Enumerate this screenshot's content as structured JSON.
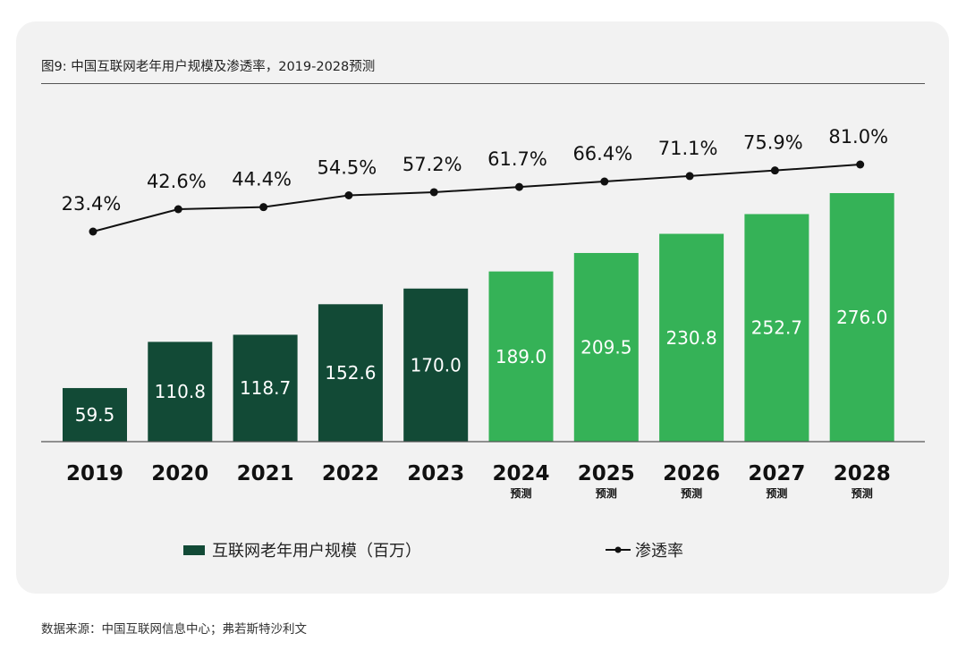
{
  "source_note": "数据来源：中国互联网信息中心；弗若斯特沙利文",
  "colors": {
    "actual_bar": "#124a36",
    "forecast_bar": "#35b257",
    "line": "#111111",
    "card_bg": "#f2f2f2"
  },
  "chart_data": {
    "type": "bar",
    "title": "图9: 中国互联网老年用户规模及渗透率，2019-2028预测",
    "categories": [
      "2019",
      "2020",
      "2021",
      "2022",
      "2023",
      "2024",
      "2025",
      "2026",
      "2027",
      "2028"
    ],
    "category_sublabels": [
      "",
      "",
      "",
      "",
      "",
      "预测",
      "预测",
      "预测",
      "预测",
      "预测"
    ],
    "xlabel": "",
    "ylabel": "",
    "grid": false,
    "legend_position": "bottom",
    "series": [
      {
        "name": "互联网老年用户规模（百万）",
        "type": "bar",
        "values": [
          59.5,
          110.8,
          118.7,
          152.6,
          170.0,
          189.0,
          209.5,
          230.8,
          252.7,
          276.0
        ],
        "labels": [
          "59.5",
          "110.8",
          "118.7",
          "152.6",
          "170.0",
          "189.0",
          "209.5",
          "230.8",
          "252.7",
          "276.0"
        ],
        "forecast_from_index": 5
      },
      {
        "name": "渗透率",
        "type": "line",
        "values": [
          23.4,
          42.6,
          44.4,
          54.5,
          57.2,
          61.7,
          66.4,
          71.1,
          75.9,
          81.0
        ],
        "labels": [
          "23.4%",
          "42.6%",
          "44.4%",
          "54.5%",
          "57.2%",
          "61.7%",
          "66.4%",
          "71.1%",
          "75.9%",
          "81.0%"
        ]
      }
    ]
  }
}
